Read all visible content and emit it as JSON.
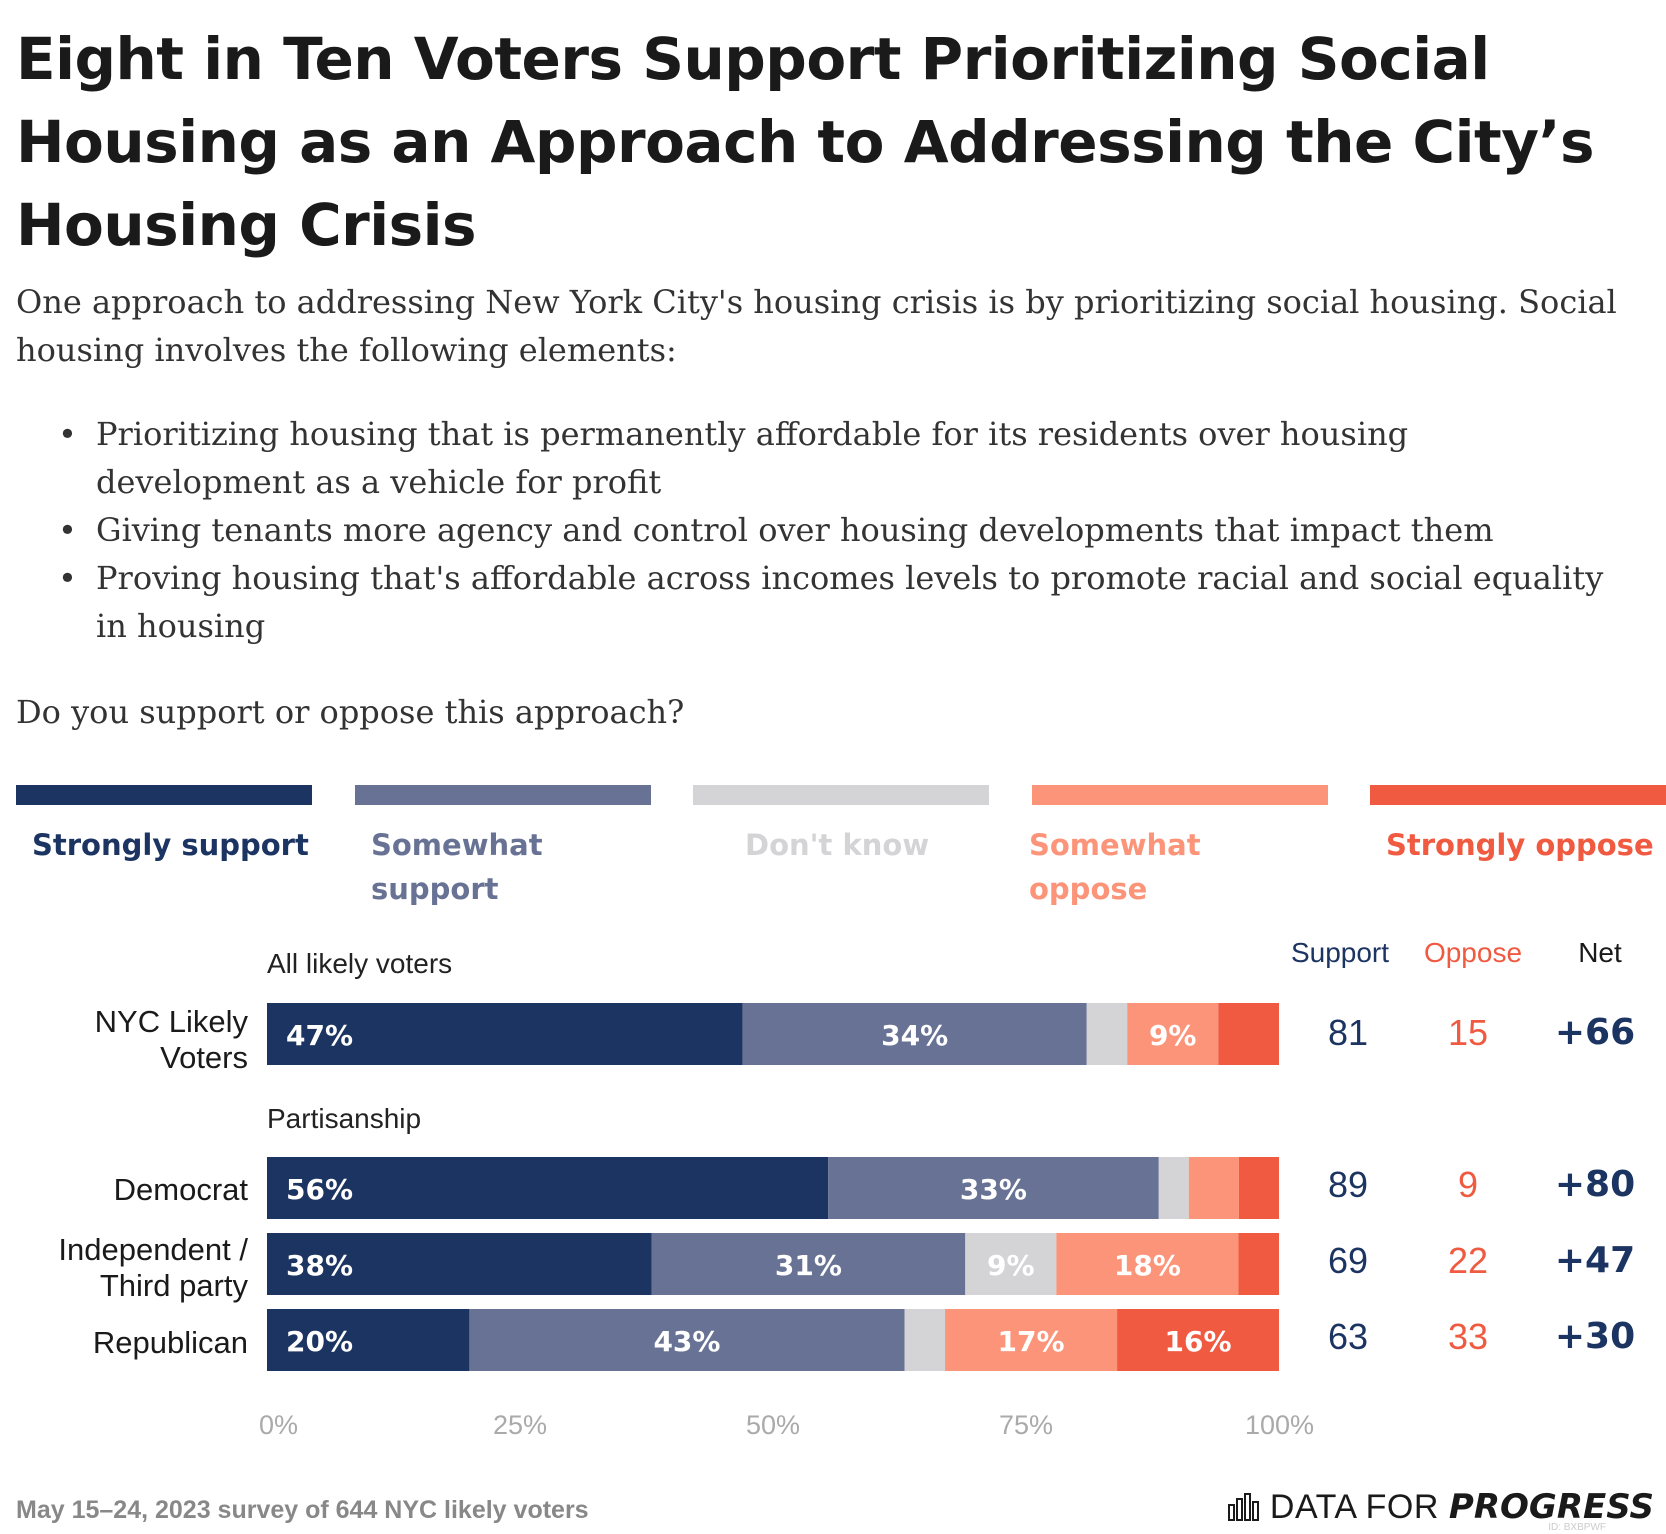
{
  "title": "Eight in Ten Voters Support Prioritizing Social Housing as an Approach to Addressing the City’s Housing Crisis",
  "intro": "One approach to addressing New York City's housing crisis is by prioritizing social housing. Social housing involves the following elements:",
  "bullets": [
    "Prioritizing housing that is permanently affordable for its residents over housing development as a vehicle for profit",
    "Giving tenants more agency and control over housing developments that impact them",
    "Proving housing that's affordable across incomes levels to promote racial and social equality in housing"
  ],
  "question": "Do you support or oppose this approach?",
  "colors": {
    "strongly_support": "#1c3461",
    "somewhat_support": "#687294",
    "dont_know": "#d4d4d6",
    "somewhat_oppose": "#fc9479",
    "strongly_oppose": "#ef5a40",
    "axis_text": "#aaaaaa",
    "support_text": "#1c3461",
    "oppose_text": "#ef5a40"
  },
  "legend": [
    {
      "key": "strongly_support",
      "label": "Strongly support"
    },
    {
      "key": "somewhat_support",
      "label": "Somewhat support"
    },
    {
      "key": "dont_know",
      "label": "Don't know"
    },
    {
      "key": "somewhat_oppose",
      "label": "Somewhat oppose"
    },
    {
      "key": "strongly_oppose",
      "label": "Strongly oppose"
    }
  ],
  "columns": {
    "support": "Support",
    "oppose": "Oppose",
    "net": "Net"
  },
  "groups": [
    {
      "label": "All likely voters"
    },
    {
      "label": "Partisanship"
    }
  ],
  "chart_data": {
    "type": "bar",
    "orientation": "horizontal",
    "stacked": true,
    "series_order": [
      "strongly_support",
      "somewhat_support",
      "dont_know",
      "somewhat_oppose",
      "strongly_oppose"
    ],
    "rows": [
      {
        "label": "NYC Likely Voters",
        "group": "All likely voters",
        "values": [
          47,
          34,
          4,
          9,
          6
        ],
        "labels": [
          "47%",
          "34%",
          "",
          "9%",
          ""
        ],
        "support": "81",
        "oppose": "15",
        "net": "+66"
      },
      {
        "label": "Democrat",
        "group": "Partisanship",
        "values": [
          56,
          33,
          3,
          5,
          4
        ],
        "labels": [
          "56%",
          "33%",
          "",
          "",
          ""
        ],
        "support": "89",
        "oppose": "9",
        "net": "+80"
      },
      {
        "label": "Independent / Third party",
        "group": "Partisanship",
        "values": [
          38,
          31,
          9,
          18,
          4
        ],
        "labels": [
          "38%",
          "31%",
          "9%",
          "18%",
          ""
        ],
        "support": "69",
        "oppose": "22",
        "net": "+47"
      },
      {
        "label": "Republican",
        "group": "Partisanship",
        "values": [
          20,
          43,
          4,
          17,
          16
        ],
        "labels": [
          "20%",
          "43%",
          "",
          "17%",
          "16%"
        ],
        "support": "63",
        "oppose": "33",
        "net": "+30"
      }
    ],
    "x_ticks": [
      "0%",
      "25%",
      "50%",
      "75%",
      "100%"
    ],
    "xlim": [
      0,
      100
    ]
  },
  "footer": "May 15–24, 2023 survey of 644 NYC likely voters",
  "logo": {
    "light": "DATA FOR",
    "bold": "PROGRESS",
    "icon": "bar-chart-icon"
  },
  "watermark": "ID: BXBPWF"
}
